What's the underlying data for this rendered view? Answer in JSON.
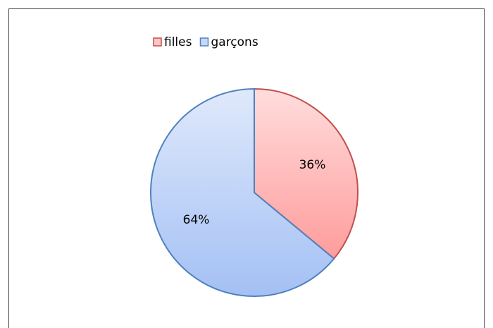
{
  "chart_data": {
    "type": "pie",
    "categories": [
      "filles",
      "garçons"
    ],
    "values": [
      36,
      64
    ],
    "value_labels": [
      "36%",
      "64%"
    ],
    "colors": [
      "#ff9c9c",
      "#a4c0f4"
    ],
    "edge_colors": [
      "#c0504d",
      "#4f81bd"
    ],
    "legend": "top"
  }
}
